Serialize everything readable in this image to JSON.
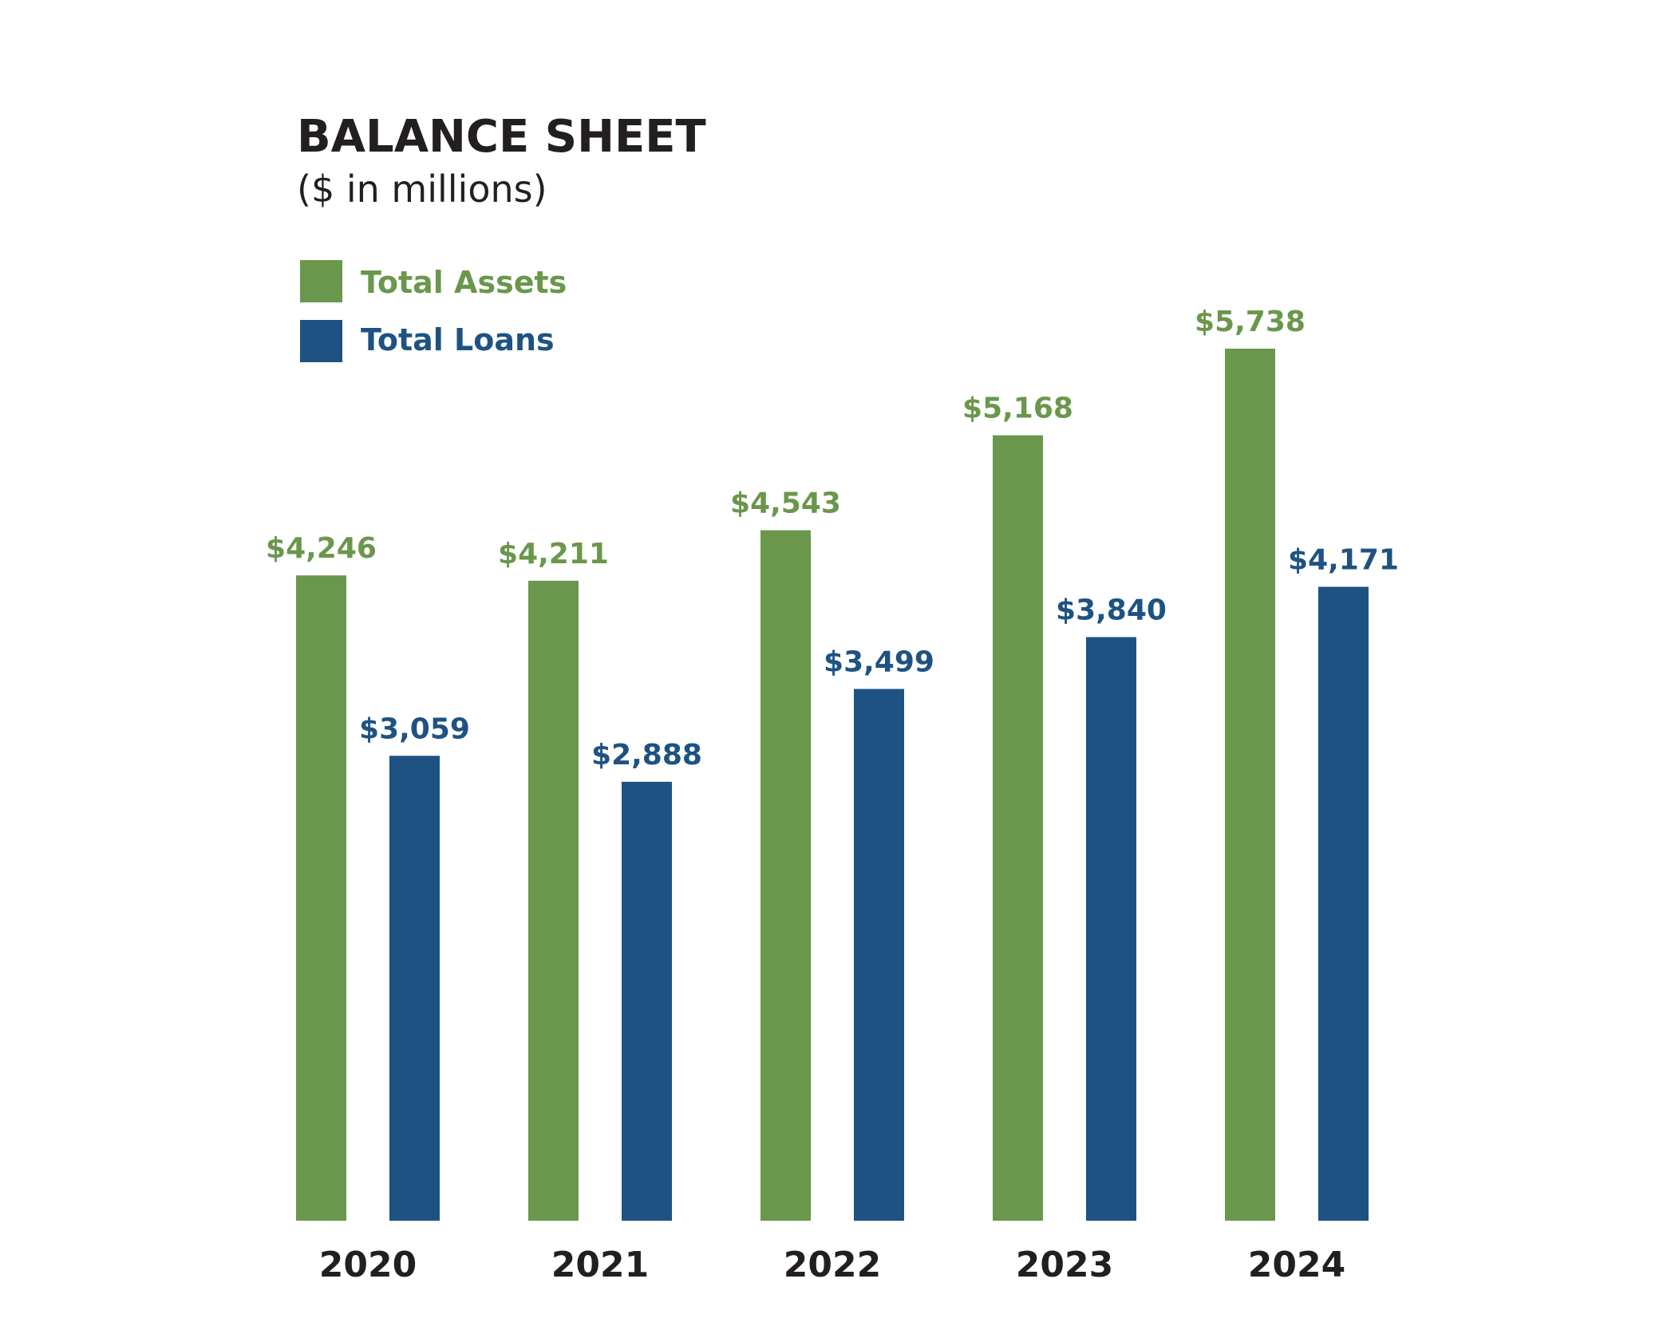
{
  "chart_data": {
    "type": "bar",
    "title": "BALANCE SHEET",
    "subtitle": "($ in millions)",
    "xlabel": "",
    "ylabel": "",
    "ylim": [
      0,
      5738
    ],
    "grid": false,
    "legend_position": "top-left",
    "categories": [
      "2020",
      "2021",
      "2022",
      "2023",
      "2024"
    ],
    "series": [
      {
        "name": "Total Assets",
        "color": "#6a974b",
        "values": [
          4246,
          4211,
          4543,
          5168,
          5738
        ],
        "labels": [
          "$4,246",
          "$4,211",
          "$4,543",
          "$5,168",
          "$5,738"
        ]
      },
      {
        "name": "Total Loans",
        "color": "#1e5282",
        "values": [
          3059,
          2888,
          3499,
          3840,
          4171
        ],
        "labels": [
          "$3,059",
          "$2,888",
          "$3,499",
          "$3,840",
          "$4,171"
        ]
      }
    ]
  }
}
